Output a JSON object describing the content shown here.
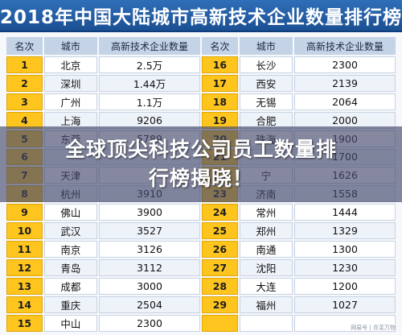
{
  "title": "2018年中国大陆城市高新技术企业数量排行榜",
  "headers": [
    "名次",
    "城市",
    "高新技术企业数量",
    "名次",
    "城市",
    "高新技术企业数量"
  ],
  "rows": [
    {
      "r1": "1",
      "c1": "北京",
      "v1": "2.5万",
      "r2": "16",
      "c2": "长沙",
      "v2": "2300"
    },
    {
      "r1": "2",
      "c1": "深圳",
      "v1": "1.44万",
      "r2": "17",
      "c2": "西安",
      "v2": "2139"
    },
    {
      "r1": "3",
      "c1": "广州",
      "v1": "1.1万",
      "r2": "18",
      "c2": "无锡",
      "v2": "2064"
    },
    {
      "r1": "4",
      "c1": "上海",
      "v1": "9206",
      "r2": "19",
      "c2": "合肥",
      "v2": "2000"
    },
    {
      "r1": "5",
      "c1": "东莞",
      "v1": "5789",
      "r2": "20",
      "c2": "珠海",
      "v2": "1900"
    },
    {
      "r1": "6",
      "c1": "",
      "v1": "",
      "r2": "21",
      "c2": "",
      "v2": "1700"
    },
    {
      "r1": "7",
      "c1": "天津",
      "v1": "",
      "r2": "22",
      "c2": "宁",
      "v2": "1626"
    },
    {
      "r1": "8",
      "c1": "杭州",
      "v1": "3910",
      "r2": "23",
      "c2": "济南",
      "v2": "1558"
    },
    {
      "r1": "9",
      "c1": "佛山",
      "v1": "3900",
      "r2": "24",
      "c2": "常州",
      "v2": "1444"
    },
    {
      "r1": "10",
      "c1": "武汉",
      "v1": "3527",
      "r2": "25",
      "c2": "郑州",
      "v2": "1329"
    },
    {
      "r1": "11",
      "c1": "南京",
      "v1": "3126",
      "r2": "26",
      "c2": "南通",
      "v2": "1300"
    },
    {
      "r1": "12",
      "c1": "青岛",
      "v1": "3112",
      "r2": "27",
      "c2": "沈阳",
      "v2": "1230"
    },
    {
      "r1": "13",
      "c1": "成都",
      "v1": "3000",
      "r2": "28",
      "c2": "大连",
      "v2": "1200"
    },
    {
      "r1": "14",
      "c1": "重庆",
      "v1": "2504",
      "r2": "29",
      "c2": "福州",
      "v2": "1027"
    },
    {
      "r1": "15",
      "c1": "中山",
      "v1": "2300",
      "r2": "",
      "c2": "",
      "v2": ""
    }
  ],
  "banner": {
    "line1": "全球顶尖科技公司员工数量排",
    "line2": "行榜揭晓！"
  },
  "watermark": "网易号 | 亦芜万物"
}
